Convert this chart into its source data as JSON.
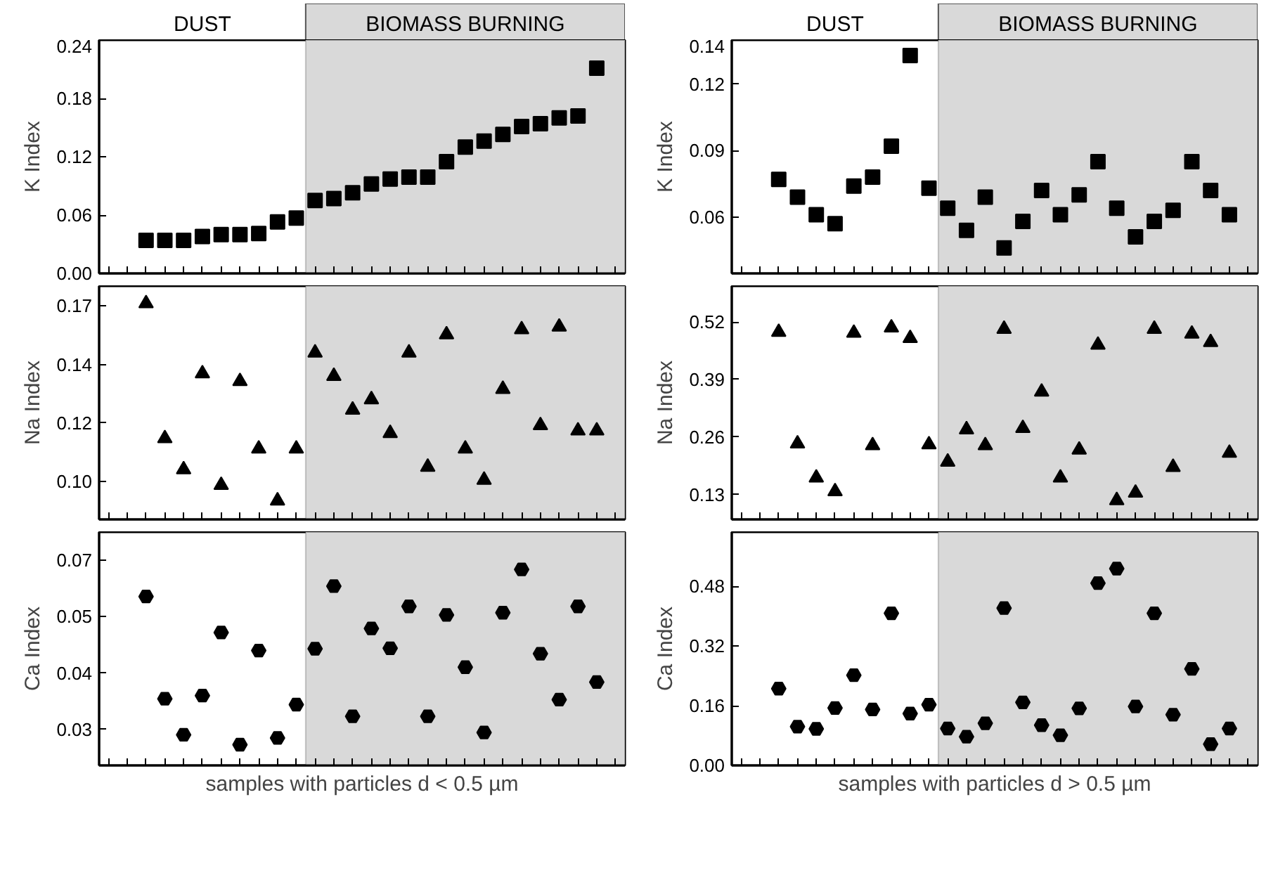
{
  "chart_data": [
    {
      "type": "scatter",
      "ylabel": "K Index",
      "marker": "square",
      "tick_labels": "y",
      "annotations": [
        "DUST",
        "BIOMASS BURNING"
      ],
      "categories": [
        null,
        null,
        null,
        null,
        null,
        null,
        null,
        null,
        null,
        null,
        null,
        null,
        null,
        null,
        null,
        null,
        null,
        null,
        null,
        null,
        null,
        null,
        null,
        null,
        null,
        null,
        null,
        null
      ],
      "series": [
        {
          "color": "#000000",
          "values": [
            null,
            null,
            0.034,
            0.034,
            0.034,
            0.038,
            0.04,
            0.04,
            0.041,
            0.053,
            0.057,
            0.075,
            0.077,
            0.083,
            0.092,
            0.097,
            0.099,
            0.099,
            0.115,
            0.13,
            0.136,
            0.143,
            0.151,
            0.154,
            0.16,
            0.162,
            0.211,
            null
          ]
        }
      ],
      "ylim": [
        0,
        0.24
      ],
      "yticks": [
        {
          "value": 0,
          "label": "0.00"
        },
        0.06,
        0.12,
        0.18,
        0.24
      ]
    },
    {
      "type": "scatter",
      "ylabel": "Na Index",
      "marker": "triangle",
      "tick_labels": "y",
      "categories": [
        null,
        null,
        null,
        null,
        null,
        null,
        null,
        null,
        null,
        null,
        null,
        null,
        null,
        null,
        null,
        null,
        null,
        null,
        null,
        null,
        null,
        null,
        null,
        null,
        null,
        null,
        null,
        null
      ],
      "series": [
        {
          "color": "#000000",
          "values": [
            null,
            null,
            0.166,
            0.114,
            0.102,
            0.139,
            0.096,
            0.136,
            0.11,
            0.09,
            0.11,
            0.147,
            0.138,
            0.125,
            0.129,
            0.116,
            0.147,
            0.103,
            0.154,
            0.11,
            0.098,
            0.133,
            0.156,
            0.119,
            0.157,
            0.117,
            0.117,
            null
          ]
        }
      ],
      "ylim": [
        0.0828,
        0.1727
      ],
      "yticks": [
        {
          "value": 0.0975,
          "label": "0.10"
        },
        0.12,
        {
          "value": 0.1425,
          "label": "0.14"
        },
        {
          "value": 0.165,
          "label": "0.17"
        }
      ]
    },
    {
      "type": "scatter",
      "ylabel": "Ca Index",
      "xlabel": "samples with particles d < 0.5 µm",
      "marker": "circle",
      "tick_labels": "y",
      "categories": [
        null,
        null,
        null,
        null,
        null,
        null,
        null,
        null,
        null,
        null,
        null,
        null,
        null,
        null,
        null,
        null,
        null,
        null,
        null,
        null,
        null,
        null,
        null,
        null,
        null,
        null,
        null,
        null
      ],
      "series": [
        {
          "color": "#000000",
          "values": [
            null,
            null,
            0.057,
            0.0343,
            0.0263,
            0.035,
            0.049,
            0.0241,
            0.045,
            0.0256,
            0.033,
            0.0454,
            0.0593,
            0.0304,
            0.0499,
            0.0455,
            0.0548,
            0.0304,
            0.0529,
            0.0413,
            0.0268,
            0.0534,
            0.063,
            0.0443,
            0.0341,
            0.0548,
            0.038,
            null
          ]
        }
      ],
      "ylim": [
        0.0195,
        0.0713
      ],
      "yticks": [
        {
          "value": 0.0275,
          "label": "0.03"
        },
        0.04,
        {
          "value": 0.0525,
          "label": "0.05"
        },
        {
          "value": 0.065,
          "label": "0.07"
        }
      ]
    },
    {
      "type": "scatter",
      "ylabel": "K Index",
      "marker": "square",
      "tick_labels": "y",
      "annotations": [
        "DUST",
        "BIOMASS BURNING"
      ],
      "categories": [
        null,
        null,
        null,
        null,
        null,
        null,
        null,
        null,
        null,
        null,
        null,
        null,
        null,
        null,
        null,
        null,
        null,
        null,
        null,
        null,
        null,
        null,
        null,
        null,
        null,
        null,
        null,
        null
      ],
      "series": [
        {
          "color": "#000000",
          "values": [
            null,
            null,
            0.077,
            0.069,
            0.061,
            0.057,
            0.074,
            0.078,
            0.092,
            0.133,
            0.073,
            0.064,
            0.054,
            0.069,
            0.046,
            0.058,
            0.072,
            0.061,
            0.07,
            0.085,
            0.064,
            0.051,
            0.058,
            0.063,
            0.085,
            0.072,
            0.061,
            null
          ]
        }
      ],
      "ylim": [
        0.0345,
        0.14
      ],
      "yticks": [
        0.06,
        0.09,
        0.12,
        0.14
      ]
    },
    {
      "type": "scatter",
      "ylabel": "Na Index",
      "marker": "triangle",
      "tick_labels": "y",
      "categories": [
        null,
        null,
        null,
        null,
        null,
        null,
        null,
        null,
        null,
        null,
        null,
        null,
        null,
        null,
        null,
        null,
        null,
        null,
        null,
        null,
        null,
        null,
        null,
        null,
        null,
        null,
        null,
        null
      ],
      "series": [
        {
          "color": "#000000",
          "values": [
            null,
            null,
            0.497,
            0.245,
            0.168,
            0.137,
            0.495,
            0.241,
            0.507,
            0.483,
            0.243,
            0.204,
            0.277,
            0.241,
            0.504,
            0.28,
            0.362,
            0.168,
            0.231,
            0.468,
            0.117,
            0.134,
            0.504,
            0.192,
            0.493,
            0.474,
            0.224,
            null
          ]
        }
      ],
      "ylim": [
        0.074,
        0.601
      ],
      "yticks": [
        0.13,
        0.26,
        0.39,
        0.52
      ]
    },
    {
      "type": "scatter",
      "ylabel": "Ca Index",
      "xlabel": "samples with particles d > 0.5 µm",
      "marker": "circle",
      "tick_labels": "y",
      "categories": [
        null,
        null,
        null,
        null,
        null,
        null,
        null,
        null,
        null,
        null,
        null,
        null,
        null,
        null,
        null,
        null,
        null,
        null,
        null,
        null,
        null,
        null,
        null,
        null,
        null,
        null,
        null,
        null
      ],
      "series": [
        {
          "color": "#000000",
          "values": [
            null,
            null,
            0.206,
            0.104,
            0.098,
            0.154,
            0.242,
            0.15,
            0.408,
            0.139,
            0.163,
            0.099,
            0.077,
            0.113,
            0.422,
            0.169,
            0.108,
            0.081,
            0.153,
            0.489,
            0.528,
            0.158,
            0.408,
            0.136,
            0.259,
            0.057,
            0.099,
            null
          ]
        }
      ],
      "ylim": [
        0,
        0.626
      ],
      "yticks": [
        {
          "value": 0,
          "label": "0.00"
        },
        0.16,
        0.32,
        0.48
      ]
    }
  ]
}
